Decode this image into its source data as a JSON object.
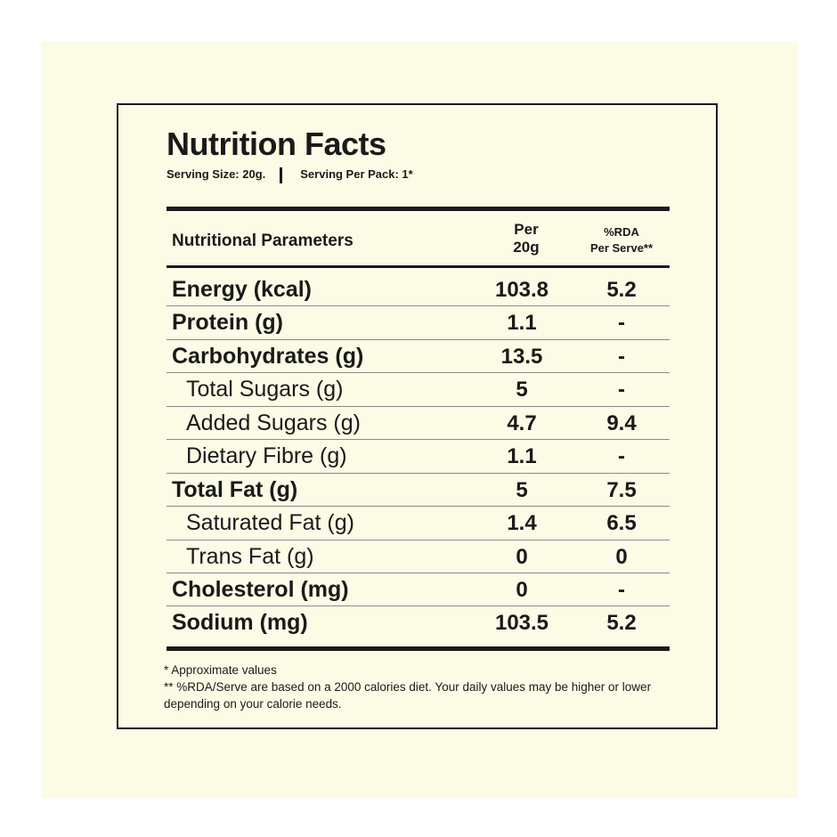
{
  "title": "Nutrition Facts",
  "serving": {
    "size": "Serving Size: 20g.",
    "per_pack": "Serving Per Pack: 1*"
  },
  "headers": {
    "name": "Nutritional Parameters",
    "per_l1": "Per",
    "per_l2": "20g",
    "rda_l1": "%RDA",
    "rda_l2": "Per Serve**"
  },
  "rows": [
    {
      "name": "Energy (kcal)",
      "per": "103.8",
      "rda": "5.2",
      "level": "main"
    },
    {
      "name": "Protein (g)",
      "per": "1.1",
      "rda": "-",
      "level": "main"
    },
    {
      "name": "Carbohydrates (g)",
      "per": "13.5",
      "rda": "-",
      "level": "main"
    },
    {
      "name": "Total Sugars (g)",
      "per": "5",
      "rda": "-",
      "level": "sub"
    },
    {
      "name": "Added Sugars (g)",
      "per": "4.7",
      "rda": "9.4",
      "level": "sub"
    },
    {
      "name": "Dietary Fibre (g)",
      "per": "1.1",
      "rda": "-",
      "level": "sub"
    },
    {
      "name": "Total Fat (g)",
      "per": "5",
      "rda": "7.5",
      "level": "main"
    },
    {
      "name": "Saturated Fat (g)",
      "per": "1.4",
      "rda": "6.5",
      "level": "sub"
    },
    {
      "name": "Trans Fat (g)",
      "per": "0",
      "rda": "0",
      "level": "sub"
    },
    {
      "name": "Cholesterol (mg)",
      "per": "0",
      "rda": "-",
      "level": "main"
    },
    {
      "name": "Sodium (mg)",
      "per": "103.5",
      "rda": "5.2",
      "level": "main"
    }
  ],
  "footnotes": {
    "line1": "* Approximate values",
    "line2": "** %RDA/Serve are based on a 2000 calories diet. Your daily values may be higher or lower depending on your calorie needs."
  }
}
